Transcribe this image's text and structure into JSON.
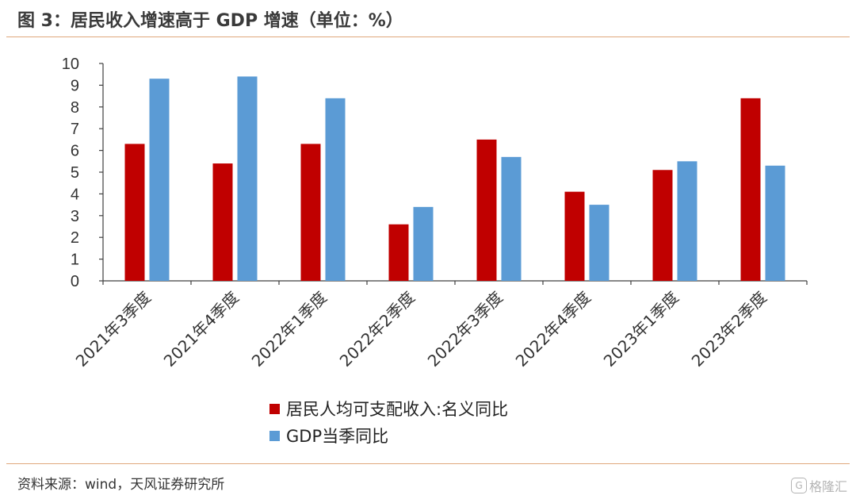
{
  "figure": {
    "title": "图 3：居民收入增速高于 GDP 增速（单位：%）",
    "source": "资料来源：wind，天风证券研究所",
    "watermark": {
      "logo": "G",
      "text": "格隆汇"
    }
  },
  "chart_data": {
    "type": "bar",
    "title": "",
    "xlabel": "",
    "ylabel": "",
    "ylim": [
      0,
      10
    ],
    "yticks": [
      0,
      1,
      2,
      3,
      4,
      5,
      6,
      7,
      8,
      9,
      10
    ],
    "grid": false,
    "legend_position": "bottom",
    "categories": [
      "2021年3季度",
      "2021年4季度",
      "2022年1季度",
      "2022年2季度",
      "2022年3季度",
      "2022年4季度",
      "2023年1季度",
      "2023年2季度"
    ],
    "series": [
      {
        "name": "居民人均可支配收入:名义同比",
        "color": "#c00000",
        "values": [
          6.3,
          5.4,
          6.3,
          2.6,
          6.5,
          4.1,
          5.1,
          8.4
        ]
      },
      {
        "name": "GDP当季同比",
        "color": "#5b9bd5",
        "values": [
          9.3,
          9.4,
          8.4,
          3.4,
          5.7,
          3.5,
          5.5,
          5.3
        ]
      }
    ]
  }
}
